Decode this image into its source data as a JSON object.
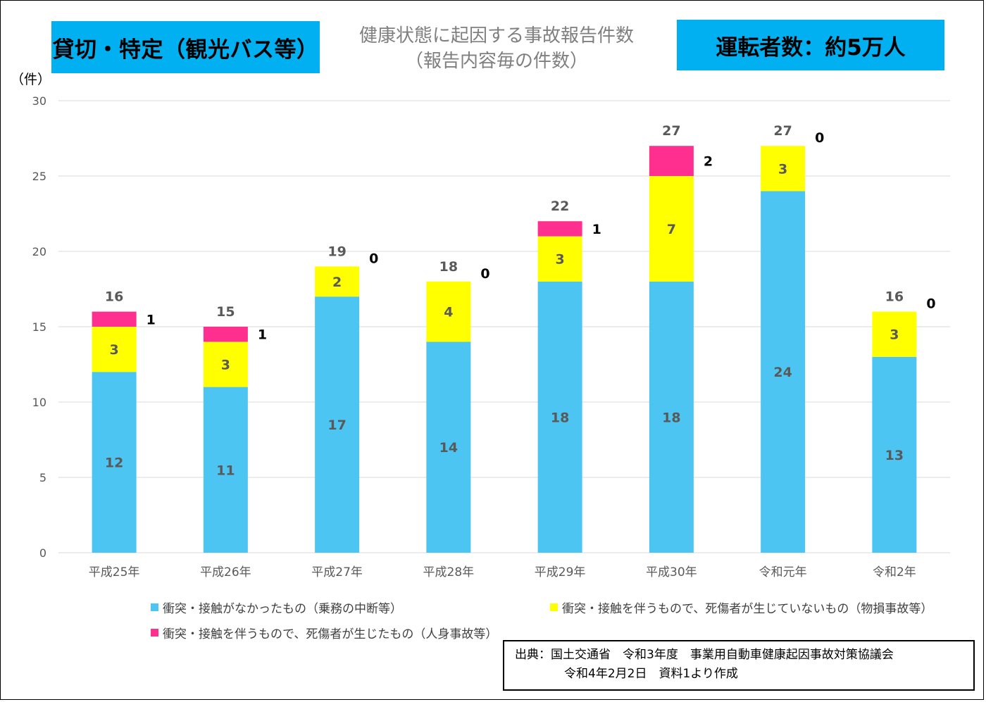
{
  "colors": {
    "badge_bg": "#00b0f0",
    "non_contact": "#4dc5f2",
    "property_damage": "#ffff00",
    "injury": "#ff2f8f",
    "gridline": "#d9d9d9",
    "axis_text": "#595959",
    "value_label": "#595959",
    "top_label": "#000000"
  },
  "header": {
    "badge_left": "貸切・特定（観光バス等）",
    "title_line1": "健康状態に起因する事故報告件数",
    "title_line2": "（報告内容毎の件数）",
    "badge_right": "運転者数：約5万人"
  },
  "chart_data": {
    "type": "bar",
    "stacked": true,
    "unit_label": "（件）",
    "categories": [
      "平成25年",
      "平成26年",
      "平成27年",
      "平成28年",
      "平成29年",
      "平成30年",
      "令和元年",
      "令和2年"
    ],
    "series": [
      {
        "name": "衝突・接触がなかったもの（乗務の中断等）",
        "color_key": "non_contact",
        "values": [
          12,
          11,
          17,
          14,
          18,
          18,
          24,
          13
        ]
      },
      {
        "name": "衝突・接触を伴うもので、死傷者が生じていないもの（物損事故等）",
        "color_key": "property_damage",
        "values": [
          3,
          3,
          2,
          4,
          3,
          7,
          3,
          3
        ]
      },
      {
        "name": "衝突・接触を伴うもので、死傷者が生じたもの（人身事故等）",
        "color_key": "injury",
        "values": [
          1,
          1,
          0,
          0,
          1,
          2,
          0,
          0
        ]
      }
    ],
    "totals": [
      16,
      15,
      19,
      18,
      22,
      27,
      27,
      16
    ],
    "ylim": [
      0,
      30
    ],
    "yticks": [
      0,
      5,
      10,
      15,
      20,
      25,
      30
    ],
    "legend_position": "bottom"
  },
  "source": {
    "line1": "出典：国土交通省　令和3年度　事業用自動車健康起因事故対策協議会",
    "line2": "令和4年2月2日　資料1より作成"
  }
}
